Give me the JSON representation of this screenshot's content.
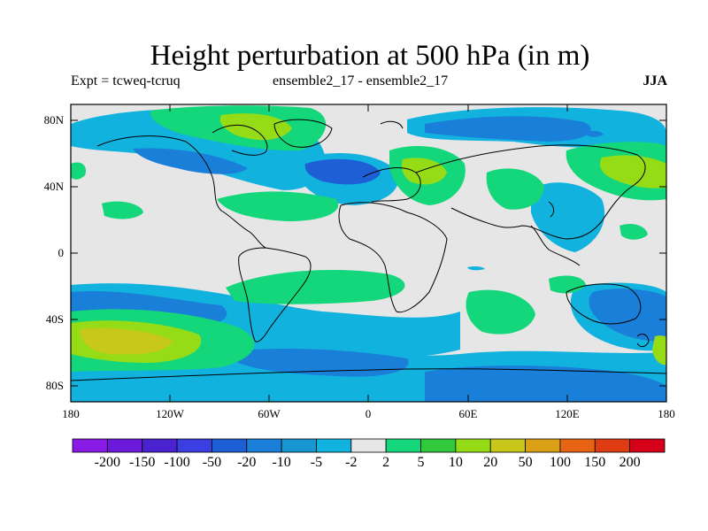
{
  "title": "Height perturbation at 500 hPa (in m)",
  "subtitle_left": "Expt = tcweq-tcruq",
  "subtitle_center": "ensemble2_17 - ensemble2_17",
  "subtitle_right": "JJA",
  "lat_labels": [
    "80N",
    "40N",
    "0",
    "40S",
    "80S"
  ],
  "lon_labels": [
    "180",
    "120W",
    "60W",
    "0",
    "60E",
    "120E",
    "180"
  ],
  "colorbar": {
    "labels": [
      "-200",
      "-150",
      "-100",
      "-50",
      "-20",
      "-10",
      "-5",
      "-2",
      "2",
      "5",
      "10",
      "20",
      "50",
      "100",
      "150",
      "200"
    ],
    "colors": [
      "#8a1ae6",
      "#6a1ad8",
      "#4b22cf",
      "#3b3ee0",
      "#1e5fd6",
      "#1a7fd8",
      "#1896d2",
      "#12b2df",
      "#e6e6e6",
      "#14d67a",
      "#32c83c",
      "#96dc16",
      "#c8c81a",
      "#dca016",
      "#e66414",
      "#e03c14",
      "#d6001a"
    ]
  }
}
